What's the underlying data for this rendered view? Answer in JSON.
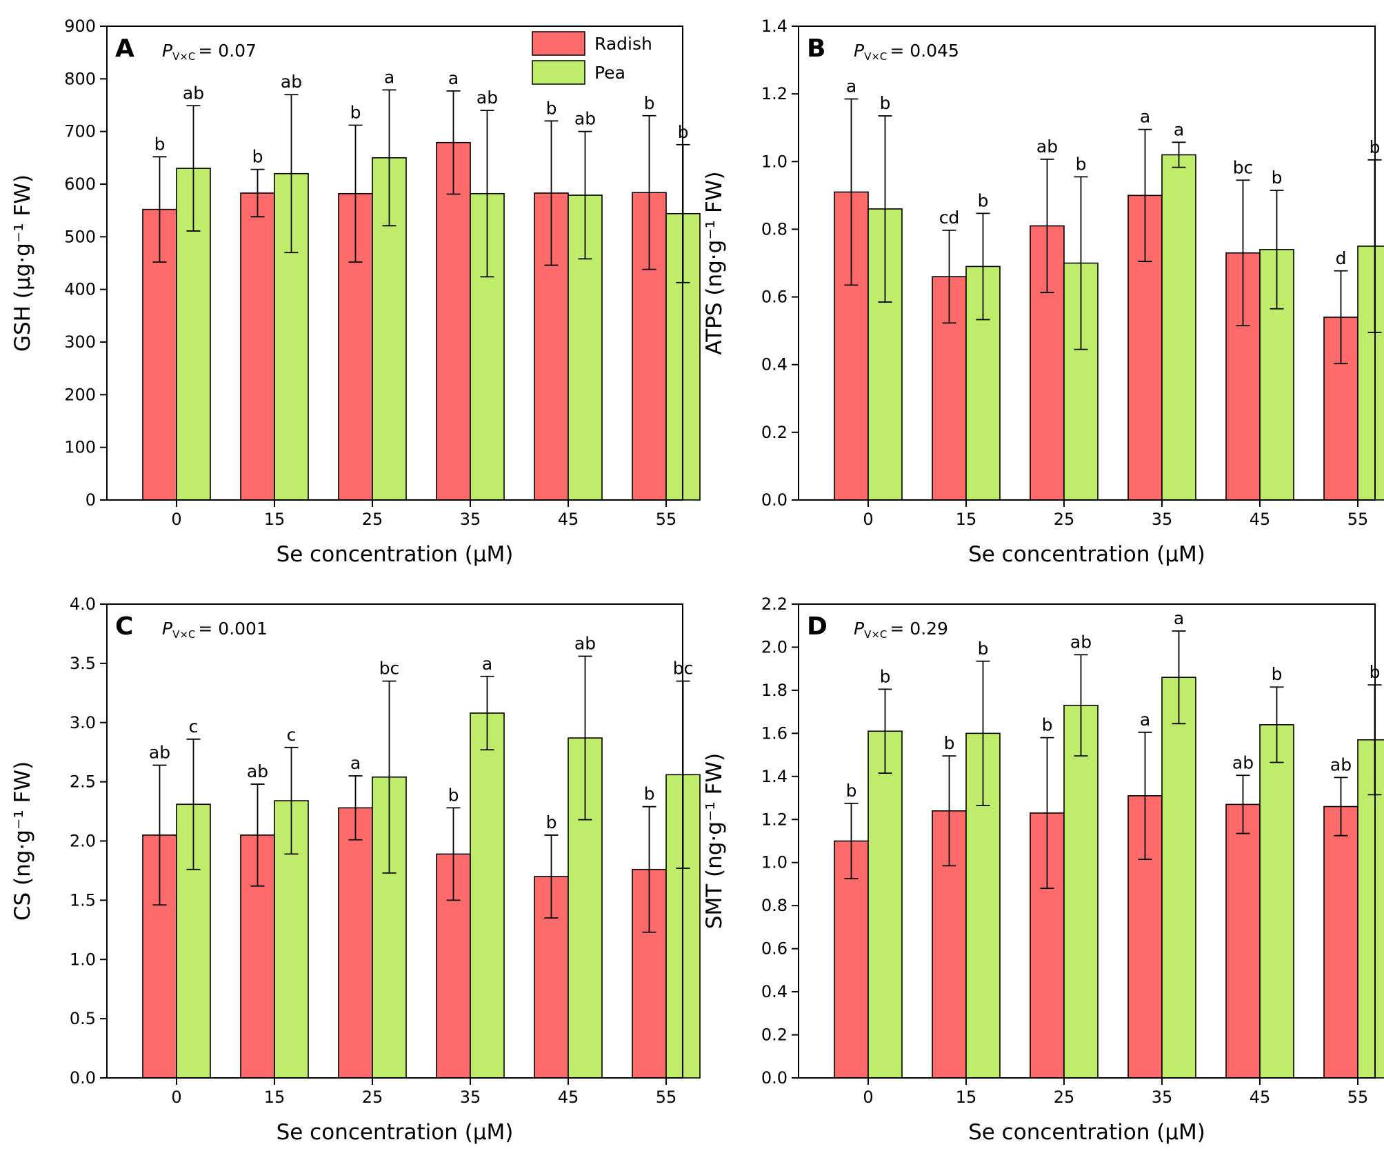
{
  "legend": [
    {
      "name": "Radish",
      "color": "#ff6b6b"
    },
    {
      "name": "Pea",
      "color": "#bfec6a"
    }
  ],
  "chart_data": [
    {
      "type": "bar",
      "panel": "A",
      "p_prefix": "P",
      "p_subscript": "V×C",
      "p_value": "= 0.07",
      "xlabel": "Se concentration (μM)",
      "ylabel": "GSH (μg·g⁻¹ FW)",
      "categories": [
        "0",
        "15",
        "25",
        "35",
        "45",
        "55"
      ],
      "ylim": [
        0,
        900
      ],
      "yticks": [
        "0",
        "100",
        "200",
        "300",
        "400",
        "500",
        "600",
        "700",
        "800",
        "900"
      ],
      "series": [
        {
          "name": "Radish",
          "values": [
            552,
            583,
            582,
            679,
            583,
            584
          ],
          "errors": [
            100,
            45,
            130,
            98,
            137,
            146
          ],
          "letters": [
            "b",
            "b",
            "b",
            "a",
            "b",
            "b"
          ]
        },
        {
          "name": "Pea",
          "values": [
            630,
            620,
            650,
            582,
            579,
            544
          ],
          "errors": [
            119,
            150,
            129,
            158,
            121,
            131
          ],
          "letters": [
            "ab",
            "ab",
            "a",
            "ab",
            "ab",
            "b"
          ]
        }
      ]
    },
    {
      "type": "bar",
      "panel": "B",
      "p_prefix": "P",
      "p_subscript": "V×C",
      "p_value": "= 0.045",
      "xlabel": "Se concentration (μM)",
      "ylabel": "ATPS (ng·g⁻¹ FW)",
      "categories": [
        "0",
        "15",
        "25",
        "35",
        "45",
        "55"
      ],
      "ylim": [
        0,
        1.4
      ],
      "yticks": [
        "0.0",
        "0.2",
        "0.4",
        "0.6",
        "0.8",
        "1.0",
        "1.2",
        "1.4"
      ],
      "series": [
        {
          "name": "Radish",
          "values": [
            0.91,
            0.66,
            0.81,
            0.9,
            0.73,
            0.54
          ],
          "errors": [
            0.275,
            0.137,
            0.197,
            0.195,
            0.215,
            0.137
          ],
          "letters": [
            "a",
            "cd",
            "ab",
            "a",
            "bc",
            "d"
          ]
        },
        {
          "name": "Pea",
          "values": [
            0.86,
            0.69,
            0.7,
            1.02,
            0.74,
            0.75
          ],
          "errors": [
            0.275,
            0.157,
            0.255,
            0.037,
            0.175,
            0.255
          ],
          "letters": [
            "b",
            "b",
            "b",
            "a",
            "b",
            "b"
          ]
        }
      ]
    },
    {
      "type": "bar",
      "panel": "C",
      "p_prefix": "P",
      "p_subscript": "V×C",
      "p_value": "= 0.001",
      "xlabel": "Se concentration (μM)",
      "ylabel": "CS (ng·g⁻¹ FW)",
      "categories": [
        "0",
        "15",
        "25",
        "35",
        "45",
        "55"
      ],
      "ylim": [
        0,
        4.0
      ],
      "yticks": [
        "0.0",
        "0.5",
        "1.0",
        "1.5",
        "2.0",
        "2.5",
        "3.0",
        "3.5",
        "4.0"
      ],
      "series": [
        {
          "name": "Radish",
          "values": [
            2.05,
            2.05,
            2.28,
            1.89,
            1.7,
            1.76
          ],
          "errors": [
            0.59,
            0.43,
            0.27,
            0.39,
            0.35,
            0.53
          ],
          "letters": [
            "ab",
            "ab",
            "a",
            "b",
            "b",
            "b"
          ]
        },
        {
          "name": "Pea",
          "values": [
            2.31,
            2.34,
            2.54,
            3.08,
            2.87,
            2.56
          ],
          "errors": [
            0.55,
            0.45,
            0.81,
            0.31,
            0.69,
            0.79
          ],
          "letters": [
            "c",
            "c",
            "bc",
            "a",
            "ab",
            "bc"
          ]
        }
      ]
    },
    {
      "type": "bar",
      "panel": "D",
      "p_prefix": "P",
      "p_subscript": "V×C",
      "p_value": "= 0.29",
      "xlabel": "Se concentration (μM)",
      "ylabel": "SMT (ng·g⁻¹ FW)",
      "categories": [
        "0",
        "15",
        "25",
        "35",
        "45",
        "55"
      ],
      "ylim": [
        0,
        2.2
      ],
      "yticks": [
        "0.0",
        "0.2",
        "0.4",
        "0.6",
        "0.8",
        "1.0",
        "1.2",
        "1.4",
        "1.6",
        "1.8",
        "2.0",
        "2.2"
      ],
      "series": [
        {
          "name": "Radish",
          "values": [
            1.1,
            1.24,
            1.23,
            1.31,
            1.27,
            1.26
          ],
          "errors": [
            0.175,
            0.255,
            0.35,
            0.295,
            0.135,
            0.135
          ],
          "letters": [
            "b",
            "b",
            "b",
            "a",
            "ab",
            "ab"
          ]
        },
        {
          "name": "Pea",
          "values": [
            1.61,
            1.6,
            1.73,
            1.86,
            1.64,
            1.57
          ],
          "errors": [
            0.195,
            0.335,
            0.235,
            0.215,
            0.175,
            0.255
          ],
          "letters": [
            "b",
            "b",
            "ab",
            "a",
            "b",
            "b"
          ]
        }
      ]
    }
  ]
}
